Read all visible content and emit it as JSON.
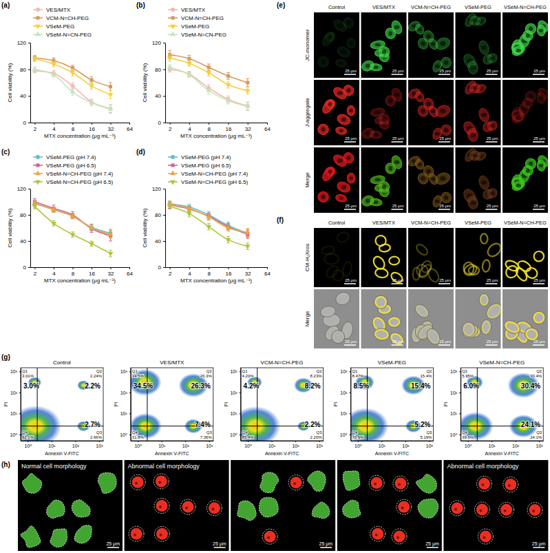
{
  "chart_data": [
    {
      "type": "line",
      "label": "(a)",
      "xlabel": "MTX concentration (μg mL⁻¹)",
      "ylabel": "Cell viability (%)",
      "log": "x",
      "legend": "upper left",
      "x": [
        2,
        4,
        8,
        16,
        32
      ],
      "xlim": [
        1.7,
        64
      ],
      "xticks": [
        2,
        4,
        8,
        16,
        32,
        64
      ],
      "ylim": [
        0,
        120
      ],
      "yticks": [
        0,
        40,
        80,
        120
      ],
      "series": [
        {
          "name": "VES/MTX",
          "color": "#f2b8b0",
          "marker": "circle",
          "values": [
            78,
            74,
            55,
            31,
            21
          ],
          "errors": [
            3,
            4,
            5,
            4,
            6
          ]
        },
        {
          "name": "VCM-N=CH-PEG",
          "color": "#d9975f",
          "marker": "square",
          "values": [
            97,
            93,
            82,
            64,
            54
          ],
          "errors": [
            4,
            4,
            4,
            5,
            6
          ]
        },
        {
          "name": "VSeM-PEG",
          "color": "#f6cf3c",
          "marker": "triangle-down",
          "values": [
            96,
            88,
            75,
            55,
            42
          ],
          "errors": [
            4,
            4,
            5,
            5,
            6
          ]
        },
        {
          "name": "VSeM-N=CN-PEG",
          "color": "#c6e3bc",
          "marker": "triangle-up",
          "values": [
            80,
            72,
            46,
            30,
            20
          ],
          "errors": [
            4,
            4,
            5,
            5,
            6
          ]
        }
      ]
    },
    {
      "type": "line",
      "label": "(b)",
      "xlabel": "MTX concentration (μg mL⁻¹)",
      "ylabel": "Cell viability (%)",
      "log": "x",
      "legend": "upper left",
      "x": [
        2,
        4,
        8,
        16,
        32
      ],
      "xlim": [
        1.7,
        64
      ],
      "xticks": [
        2,
        4,
        8,
        16,
        32,
        64
      ],
      "ylim": [
        0,
        120
      ],
      "yticks": [
        0,
        40,
        80,
        120
      ],
      "series": [
        {
          "name": "VES/MTX",
          "color": "#f2b8b0",
          "marker": "circle",
          "values": [
            80,
            73,
            52,
            35,
            25
          ],
          "errors": [
            4,
            4,
            5,
            5,
            6
          ]
        },
        {
          "name": "VCM-N=CH-PEG",
          "color": "#d9975f",
          "marker": "square",
          "values": [
            102,
            96,
            83,
            70,
            60
          ],
          "errors": [
            6,
            5,
            5,
            5,
            6
          ]
        },
        {
          "name": "VSeM-PEG",
          "color": "#f6cf3c",
          "marker": "triangle-down",
          "values": [
            97,
            89,
            75,
            57,
            48
          ],
          "errors": [
            5,
            4,
            5,
            5,
            5
          ]
        },
        {
          "name": "VSeM-N=CN-PEG",
          "color": "#c6e3bc",
          "marker": "triangle-up",
          "values": [
            83,
            72,
            48,
            33,
            24
          ],
          "errors": [
            4,
            4,
            5,
            5,
            6
          ]
        }
      ]
    },
    {
      "type": "line",
      "label": "(c)",
      "xlabel": "MTX concentration (μg mL⁻¹)",
      "ylabel": "Cell viability (%)",
      "log": "x",
      "legend": "upper left",
      "x": [
        2,
        4,
        8,
        16,
        32
      ],
      "xlim": [
        1.7,
        64
      ],
      "xticks": [
        2,
        4,
        8,
        16,
        32,
        64
      ],
      "ylim": [
        0,
        120
      ],
      "yticks": [
        0,
        40,
        80,
        120
      ],
      "series": [
        {
          "name": "VSeM-PEG (pH 7.4)",
          "color": "#5bc0c8",
          "marker": "circle",
          "values": [
            97,
            88,
            78,
            61,
            52
          ],
          "errors": [
            4,
            4,
            4,
            5,
            6
          ]
        },
        {
          "name": "VSeM-PEG (pH 6.5)",
          "color": "#d4609c",
          "marker": "square",
          "values": [
            100,
            90,
            80,
            59,
            48
          ],
          "errors": [
            5,
            5,
            5,
            6,
            8
          ]
        },
        {
          "name": "VSeM-N=CH-PEG (pH 7.4)",
          "color": "#f0a33a",
          "marker": "triangle-up",
          "values": [
            98,
            88,
            78,
            60,
            50
          ],
          "errors": [
            4,
            4,
            4,
            5,
            6
          ]
        },
        {
          "name": "VSeM-N=CH-PEG (pH 6.5)",
          "color": "#a9c83a",
          "marker": "triangle-down",
          "values": [
            93,
            67,
            50,
            36,
            21
          ],
          "errors": [
            4,
            4,
            4,
            4,
            5
          ]
        }
      ]
    },
    {
      "type": "line",
      "label": "(d)",
      "xlabel": "MTX concentration (μg mL⁻¹)",
      "ylabel": "Cell viability (%)",
      "log": "x",
      "legend": "upper left",
      "x": [
        2,
        4,
        8,
        16,
        32
      ],
      "xlim": [
        1.7,
        64
      ],
      "xticks": [
        2,
        4,
        8,
        16,
        32,
        64
      ],
      "ylim": [
        0,
        120
      ],
      "yticks": [
        0,
        40,
        80,
        120
      ],
      "series": [
        {
          "name": "VSeM-PEG (pH 7.4)",
          "color": "#5bc0c8",
          "marker": "circle",
          "values": [
            97,
            92,
            80,
            64,
            52
          ],
          "errors": [
            4,
            4,
            5,
            5,
            6
          ]
        },
        {
          "name": "VSeM-PEG (pH 6.5)",
          "color": "#d4609c",
          "marker": "square",
          "values": [
            95,
            89,
            78,
            62,
            50
          ],
          "errors": [
            5,
            4,
            5,
            5,
            6
          ]
        },
        {
          "name": "VSeM-N=CH-PEG (pH 7.4)",
          "color": "#f0a33a",
          "marker": "triangle-up",
          "values": [
            97,
            90,
            77,
            60,
            53
          ],
          "errors": [
            4,
            4,
            5,
            5,
            6
          ]
        },
        {
          "name": "VSeM-N=CH-PEG (pH 6.5)",
          "color": "#a9c83a",
          "marker": "triangle-down",
          "values": [
            93,
            82,
            62,
            42,
            32
          ],
          "errors": [
            4,
            5,
            5,
            5,
            5
          ]
        }
      ]
    },
    {
      "type": "quadrant",
      "label": "(g)",
      "title": "Control",
      "xlabel": "Annexin V-FITC",
      "ylabel": "PI",
      "log": true,
      "xlim": [
        0.5,
        1500
      ],
      "ylim": [
        0.5,
        1500
      ],
      "xticks": [
        {
          "value": 1,
          "label": "10⁰"
        },
        {
          "value": 10,
          "label": "10¹"
        },
        {
          "value": 100,
          "label": "10²"
        },
        {
          "value": 1000,
          "label": "10³"
        }
      ],
      "yticks": [
        {
          "value": 1,
          "label": "10⁰"
        },
        {
          "value": 10,
          "label": "10¹"
        },
        {
          "value": 100,
          "label": "10²"
        },
        {
          "value": 1000,
          "label": "10³"
        }
      ],
      "gate": [
        2.5,
        2.5
      ],
      "quadrants": [
        "Q1",
        "Q2",
        "Q3",
        "Q4"
      ],
      "values": [
        3.01,
        2.24,
        2.66,
        92.1
      ],
      "value_labels": [
        "3.01%",
        "2.24%",
        "2.66%",
        "92.1%"
      ],
      "summary": [
        {
          "value": 3.0,
          "label": "3.0%"
        },
        {
          "value": 2.2,
          "label": "2.2%"
        },
        {
          "value": 2.7,
          "label": "2.7%"
        }
      ]
    },
    {
      "type": "quadrant",
      "title": "VES/MTX",
      "xlabel": "Annexin V-FITC",
      "ylabel": "PI",
      "log": true,
      "xlim": [
        0.5,
        1500
      ],
      "ylim": [
        0.5,
        1500
      ],
      "xticks": [
        {
          "value": 1,
          "label": "10⁰"
        },
        {
          "value": 10,
          "label": "10¹"
        },
        {
          "value": 100,
          "label": "10²"
        },
        {
          "value": 1000,
          "label": "10³"
        }
      ],
      "yticks": [
        {
          "value": 1,
          "label": "10⁰"
        },
        {
          "value": 10,
          "label": "10¹"
        },
        {
          "value": 100,
          "label": "10²"
        },
        {
          "value": 1000,
          "label": "10³"
        }
      ],
      "gate": [
        2.5,
        2.5
      ],
      "quadrants": [
        "Q1",
        "Q2",
        "Q3",
        "Q4"
      ],
      "values": [
        34.5,
        26.3,
        7.36,
        31.8
      ],
      "value_labels": [
        "34.5%",
        "26.3%",
        "7.36%",
        "31.8%"
      ],
      "summary": [
        {
          "value": 34.5,
          "label": "34.5%"
        },
        {
          "value": 26.3,
          "label": "26.3%"
        },
        {
          "value": 7.4,
          "label": "7.4%"
        }
      ]
    },
    {
      "type": "quadrant",
      "title": "VCM-N=CH-PEG",
      "xlabel": "Annexin V-FITC",
      "ylabel": "PI",
      "log": true,
      "xlim": [
        0.5,
        1500
      ],
      "ylim": [
        0.5,
        1500
      ],
      "xticks": [
        {
          "value": 1,
          "label": "10⁰"
        },
        {
          "value": 10,
          "label": "10¹"
        },
        {
          "value": 100,
          "label": "10²"
        },
        {
          "value": 1000,
          "label": "10³"
        }
      ],
      "yticks": [
        {
          "value": 1,
          "label": "10⁰"
        },
        {
          "value": 10,
          "label": "10¹"
        },
        {
          "value": 100,
          "label": "10²"
        },
        {
          "value": 1000,
          "label": "10³"
        }
      ],
      "gate": [
        2.5,
        2.5
      ],
      "quadrants": [
        "Q1",
        "Q2",
        "Q3",
        "Q4"
      ],
      "values": [
        4.2,
        8.23,
        2.2,
        85.4
      ],
      "value_labels": [
        "4.20%",
        "8.23%",
        "2.20%",
        "85.4%"
      ],
      "summary": [
        {
          "value": 4.2,
          "label": "4.2%"
        },
        {
          "value": 8.2,
          "label": "8.2%"
        },
        {
          "value": 2.2,
          "label": "2.2%"
        }
      ]
    },
    {
      "type": "quadrant",
      "title": "VSeM-PEG",
      "xlabel": "Annexin V-FITC",
      "ylabel": "PI",
      "log": true,
      "xlim": [
        0.5,
        1500
      ],
      "ylim": [
        0.5,
        1500
      ],
      "xticks": [
        {
          "value": 1,
          "label": "10⁰"
        },
        {
          "value": 10,
          "label": "10¹"
        },
        {
          "value": 100,
          "label": "10²"
        },
        {
          "value": 1000,
          "label": "10³"
        }
      ],
      "yticks": [
        {
          "value": 1,
          "label": "10⁰"
        },
        {
          "value": 10,
          "label": "10¹"
        },
        {
          "value": 100,
          "label": "10²"
        },
        {
          "value": 1000,
          "label": "10³"
        }
      ],
      "gate": [
        2.5,
        2.5
      ],
      "quadrants": [
        "Q1",
        "Q2",
        "Q3",
        "Q4"
      ],
      "values": [
        8.47,
        15.4,
        5.19,
        70.9
      ],
      "value_labels": [
        "8.47%",
        "15.4%",
        "5.19%",
        "70.9%"
      ],
      "summary": [
        {
          "value": 8.5,
          "label": "8.5%"
        },
        {
          "value": 15.4,
          "label": "15.4%"
        },
        {
          "value": 5.2,
          "label": "5.2%"
        }
      ]
    },
    {
      "type": "quadrant",
      "title": "VSeM-N=CH-PEG",
      "xlabel": "Annexin V-FITC",
      "ylabel": "PI",
      "log": true,
      "xlim": [
        0.5,
        1500
      ],
      "ylim": [
        0.5,
        1500
      ],
      "xticks": [
        {
          "value": 1,
          "label": "10⁰"
        },
        {
          "value": 10,
          "label": "10¹"
        },
        {
          "value": 100,
          "label": "10²"
        },
        {
          "value": 1000,
          "label": "10³"
        }
      ],
      "yticks": [
        {
          "value": 1,
          "label": "10⁰"
        },
        {
          "value": 10,
          "label": "10¹"
        },
        {
          "value": 100,
          "label": "10²"
        },
        {
          "value": 1000,
          "label": "10³"
        }
      ],
      "gate": [
        2.5,
        2.5
      ],
      "quadrants": [
        "Q1",
        "Q2",
        "Q3",
        "Q4"
      ],
      "values": [
        5.95,
        30.4,
        24.1,
        39.6
      ],
      "value_labels": [
        "5.95%",
        "30.4%",
        "24.1%",
        "39.6%"
      ],
      "summary": [
        {
          "value": 6.0,
          "label": "6.0%"
        },
        {
          "value": 30.4,
          "label": "30.4%"
        },
        {
          "value": 24.1,
          "label": "24.1%"
        }
      ]
    }
  ],
  "image_panels": {
    "e": {
      "label": "(e)",
      "columns": [
        "Control",
        "VES/MTX",
        "VCM-N=CH-PEG",
        "VSeM-PEG",
        "VSeM-N=CH-PEG"
      ],
      "rows": [
        "JC-monomer",
        "J-aggregate",
        "Merge"
      ],
      "scale_bar": "25 μm"
    },
    "f": {
      "label": "(f)",
      "columns": [
        "Control",
        "VES/MTX",
        "VCM-N=CH-PEG",
        "VSeM-PEG",
        "VSeM-N=CH-PEG"
      ],
      "rows": [
        "CM-H₂Xros",
        "Merge"
      ],
      "scale_bar": "25 μm"
    },
    "h": {
      "label": "(h)",
      "captions": [
        "Normal cell morphology",
        "Abnormal cell morphology",
        null,
        null,
        "Abnormal cell morphology"
      ],
      "scale_bar": "25 μm"
    }
  }
}
